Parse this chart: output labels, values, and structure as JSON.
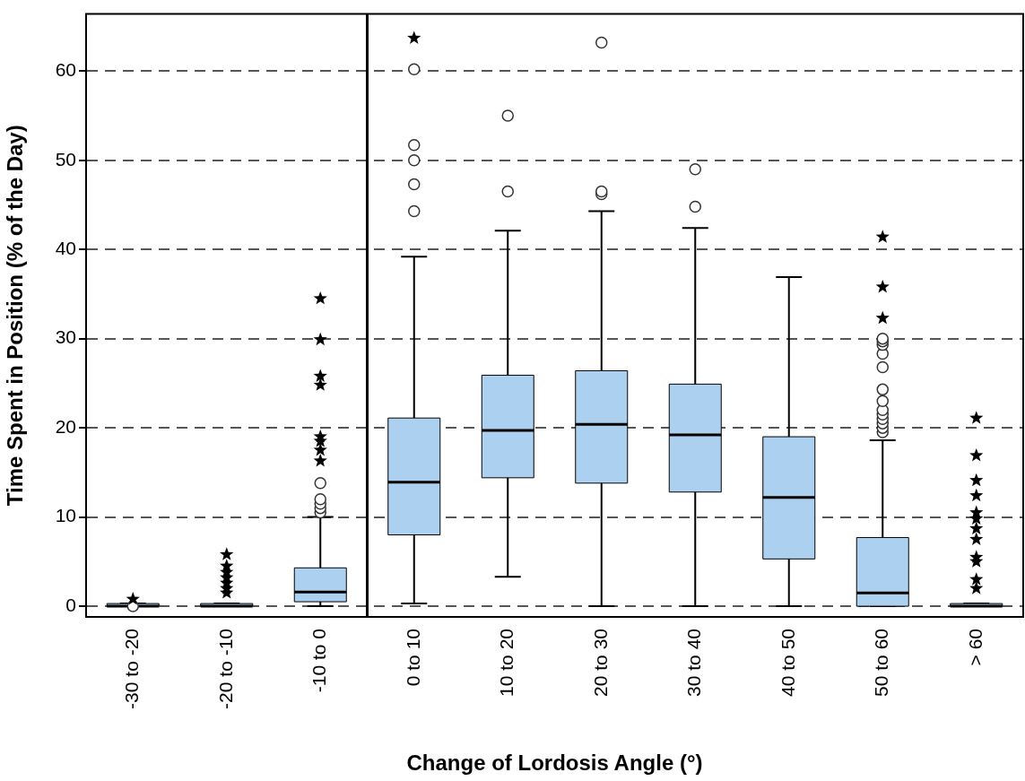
{
  "chart_data": {
    "type": "box",
    "xlabel": "Change of Lordosis Angle (°)",
    "ylabel": "Time Spent in Position (% of the Day)",
    "categories": [
      "-30 to -20",
      "-20 to -10",
      "-10 to 0",
      "0 to 10",
      "10 to 20",
      "20 to 30",
      "30 to 40",
      "40 to 50",
      "50 to 60",
      "> 60"
    ],
    "ylim": [
      -1.2,
      66.4
    ],
    "yticks": [
      0,
      10,
      20,
      30,
      40,
      50,
      60
    ],
    "grid": "y",
    "series": [
      {
        "type": "box",
        "color": "#acd0ef",
        "boxes": [
          {
            "low": 0,
            "q1": 0,
            "median": 0,
            "q3": 0.3,
            "high": 0.3,
            "outliers": [
              0
            ]
          },
          {
            "low": 0,
            "q1": 0,
            "median": 0,
            "q3": 0.3,
            "high": 0.3
          },
          {
            "low": 0,
            "q1": 0.5,
            "median": 1.6,
            "q3": 4.3,
            "high": 10,
            "outliers": [
              10.5,
              11,
              11.5,
              12,
              13.8
            ]
          },
          {
            "low": 0.3,
            "q1": 8,
            "median": 13.9,
            "q3": 21.1,
            "high": 39.2,
            "outliers": [
              44.3,
              47.3,
              50,
              51.7,
              60.2
            ]
          },
          {
            "low": 3.3,
            "q1": 14.4,
            "median": 19.7,
            "q3": 25.9,
            "high": 42.1,
            "outliers": [
              46.5,
              55
            ]
          },
          {
            "low": 0,
            "q1": 13.8,
            "median": 20.4,
            "q3": 26.4,
            "high": 44.3,
            "outliers": [
              46.2,
              46.5,
              63.2
            ]
          },
          {
            "low": 0,
            "q1": 12.8,
            "median": 19.2,
            "q3": 24.9,
            "high": 42.4,
            "outliers": [
              44.8,
              49
            ]
          },
          {
            "low": 0,
            "q1": 5.3,
            "median": 12.2,
            "q3": 19,
            "high": 36.9
          },
          {
            "low": 0,
            "q1": 0,
            "median": 1.5,
            "q3": 7.7,
            "high": 18.6,
            "outliers": [
              19.5,
              20,
              20.5,
              21,
              21.5,
              22,
              23,
              24.3,
              26.8,
              28.3,
              29.3,
              29.7,
              30
            ]
          },
          {
            "low": 0,
            "q1": 0,
            "median": 0,
            "q3": 0.3,
            "high": 0.3
          }
        ]
      },
      {
        "type": "scatter",
        "marker": "star",
        "color": "#000000",
        "x": [
          "-30 to -20",
          "-20 to -10",
          "-20 to -10",
          "-20 to -10",
          "-20 to -10",
          "-20 to -10",
          "-20 to -10",
          "-20 to -10",
          "-10 to 0",
          "-10 to 0",
          "-10 to 0",
          "-10 to 0",
          "-10 to 0",
          "-10 to 0",
          "-10 to 0",
          "-10 to 0",
          "0 to 10",
          "50 to 60",
          "50 to 60",
          "50 to 60",
          "> 60",
          "> 60",
          "> 60",
          "> 60",
          "> 60",
          "> 60",
          "> 60",
          "> 60",
          "> 60",
          "> 60",
          "> 60",
          "> 60"
        ],
        "values": [
          0.8,
          5.8,
          4.5,
          3.8,
          3.2,
          2.6,
          2,
          1.5,
          16.3,
          17.5,
          18.5,
          19,
          24.8,
          25.8,
          29.9,
          34.5,
          63.7,
          32.3,
          35.8,
          41.4,
          21.1,
          16.9,
          14.1,
          12.4,
          10.5,
          9.8,
          8.7,
          7.5,
          5.5,
          5,
          3,
          2
        ]
      }
    ]
  }
}
